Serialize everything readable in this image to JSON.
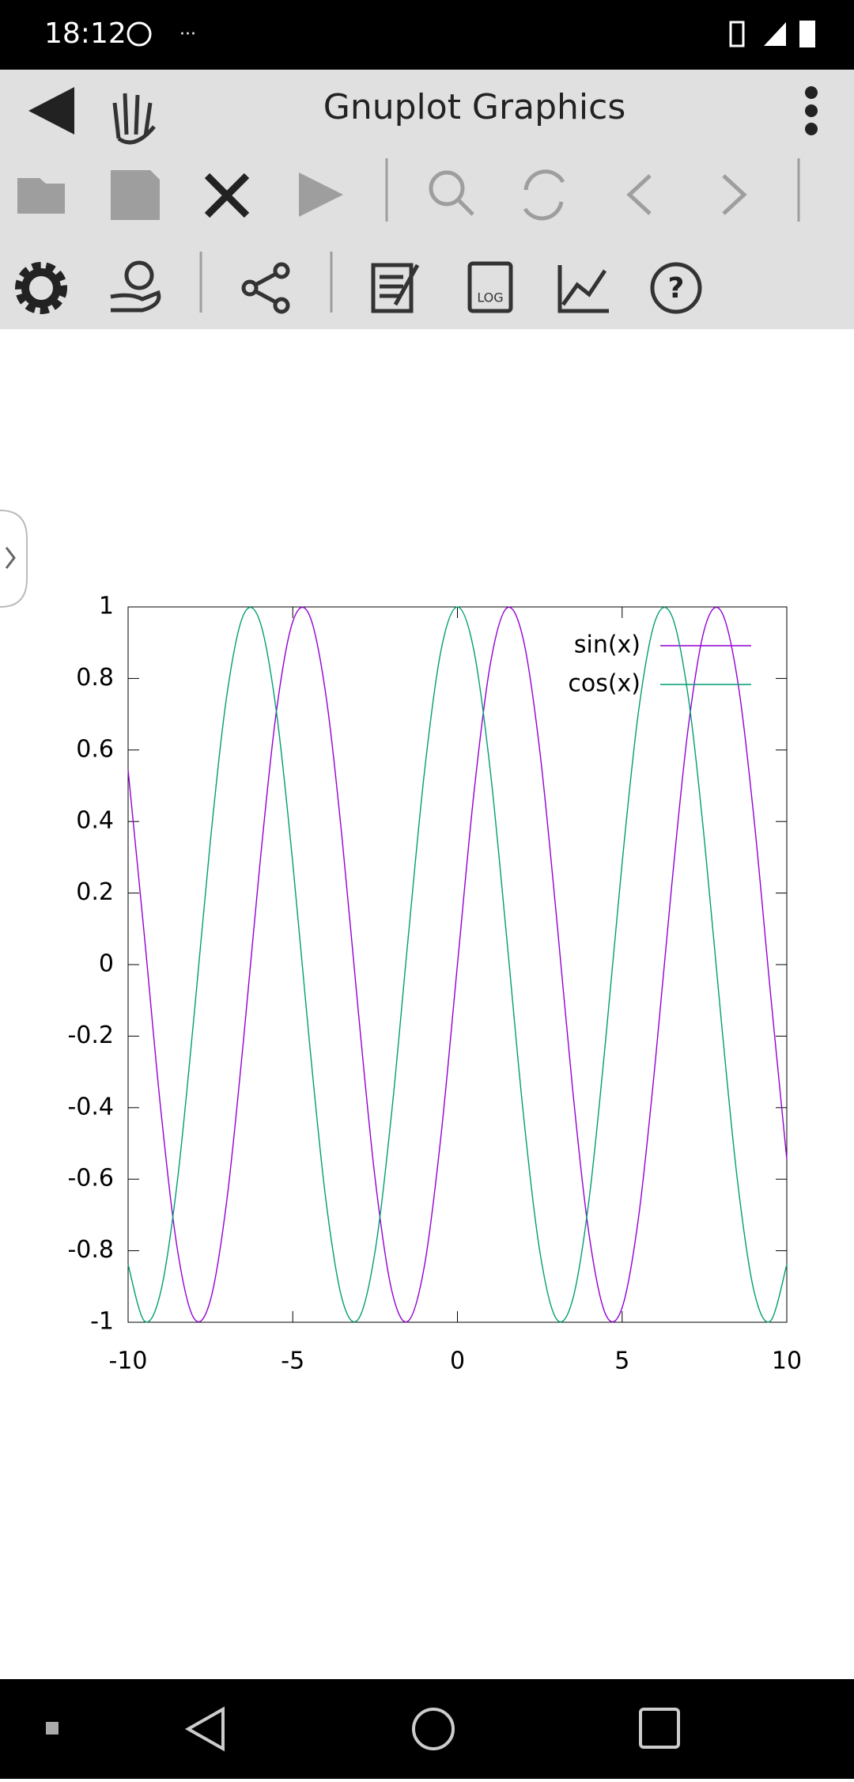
{
  "status_bar": {
    "time": "18:12"
  },
  "app_bar": {
    "title": "Gnuplot Graphics"
  },
  "chart_data": {
    "type": "line",
    "x": [
      -10,
      -9.5,
      -9,
      -8.5,
      -8,
      -7.5,
      -7,
      -6.5,
      -6,
      -5.5,
      -5,
      -4.5,
      -4,
      -3.5,
      -3,
      -2.5,
      -2,
      -1.5,
      -1,
      -0.5,
      0,
      0.5,
      1,
      1.5,
      2,
      2.5,
      3,
      3.5,
      4,
      4.5,
      5,
      5.5,
      6,
      6.5,
      7,
      7.5,
      8,
      8.5,
      9,
      9.5,
      10
    ],
    "series": [
      {
        "name": "sin(x)",
        "color": "#9400d3",
        "values": [
          0.544,
          0.075,
          -0.412,
          -0.798,
          -0.989,
          -0.938,
          -0.657,
          -0.215,
          0.279,
          0.706,
          0.959,
          0.978,
          0.757,
          0.351,
          -0.141,
          -0.598,
          -0.909,
          -0.997,
          -0.841,
          -0.479,
          0,
          0.479,
          0.841,
          0.997,
          0.909,
          0.598,
          0.141,
          -0.351,
          -0.757,
          -0.978,
          -0.959,
          -0.706,
          -0.279,
          0.215,
          0.657,
          0.938,
          0.989,
          0.798,
          0.412,
          -0.075,
          -0.544
        ]
      },
      {
        "name": "cos(x)",
        "color": "#009e73",
        "values": [
          -0.839,
          -0.997,
          -0.911,
          -0.602,
          -0.146,
          0.347,
          0.754,
          0.977,
          0.96,
          0.709,
          0.284,
          -0.211,
          -0.654,
          -0.936,
          -0.99,
          -0.801,
          -0.416,
          0.071,
          0.54,
          0.878,
          1,
          0.878,
          0.54,
          0.071,
          -0.416,
          -0.801,
          -0.99,
          -0.936,
          -0.654,
          -0.211,
          0.284,
          0.709,
          0.96,
          0.977,
          0.754,
          0.347,
          -0.146,
          -0.602,
          -0.911,
          -0.997,
          -0.839
        ]
      }
    ],
    "xlim": [
      -10,
      10
    ],
    "xticks": [
      -10,
      -5,
      0,
      5,
      10
    ],
    "ylim": [
      -1,
      1
    ],
    "yticks": [
      -1,
      -0.8,
      -0.6,
      -0.4,
      -0.2,
      0,
      0.2,
      0.4,
      0.6,
      0.8,
      1
    ],
    "legend": "upper right"
  }
}
